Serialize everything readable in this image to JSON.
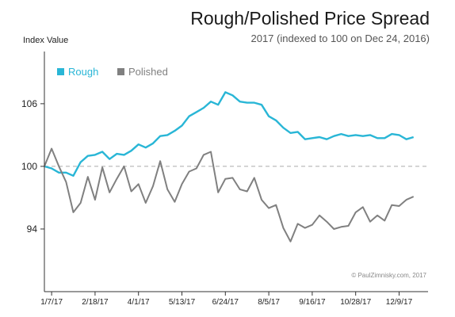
{
  "chart_data": {
    "type": "line",
    "title": "Rough/Polished Price Spread",
    "subtitle": "2017 (indexed to 100 on Dec 24, 2016)",
    "ylabel": "Index Value",
    "xlabel": "",
    "ylim": [
      88,
      111
    ],
    "y_ticks": [
      94,
      100,
      106
    ],
    "reference_line": 100,
    "x_tick_labels": [
      "1/7/17",
      "2/18/17",
      "4/1/17",
      "5/13/17",
      "6/24/17",
      "8/5/17",
      "9/16/17",
      "10/28/17",
      "12/9/17"
    ],
    "x_range": [
      0,
      53
    ],
    "x_tick_positions": [
      1,
      7,
      13,
      19,
      25,
      31,
      37,
      43,
      49
    ],
    "legend_position": "top-left",
    "credit": "© PaulZimnisky.com, 2017",
    "colors": {
      "rough": "#29b6d6",
      "polished": "#808080",
      "axis": "#333333",
      "reference": "#aaaaaa"
    },
    "series": [
      {
        "name": "Rough",
        "x": [
          0,
          1,
          2,
          3,
          4,
          5,
          6,
          7,
          8,
          9,
          10,
          11,
          12,
          13,
          14,
          15,
          16,
          17,
          18,
          19,
          20,
          21,
          22,
          23,
          24,
          25,
          26,
          27,
          28,
          29,
          30,
          31,
          32,
          33,
          34,
          35,
          36,
          37,
          38,
          39,
          40,
          41,
          42,
          43,
          44,
          45,
          46,
          47,
          48,
          49,
          50,
          51,
          52
        ],
        "values": [
          100.0,
          99.8,
          99.4,
          99.4,
          99.1,
          100.4,
          101.0,
          101.1,
          101.4,
          100.7,
          101.2,
          101.1,
          101.5,
          102.1,
          101.8,
          102.2,
          102.9,
          103.0,
          103.4,
          103.9,
          104.8,
          105.2,
          105.6,
          106.2,
          105.9,
          107.1,
          106.8,
          106.2,
          106.1,
          106.1,
          105.9,
          104.8,
          104.4,
          103.7,
          103.2,
          103.3,
          102.6,
          102.7,
          102.8,
          102.6,
          102.9,
          103.1,
          102.9,
          103.0,
          102.9,
          103.0,
          102.7,
          102.7,
          103.1,
          103.0,
          102.6,
          102.8,
          null
        ]
      },
      {
        "name": "Polished",
        "x": [
          0,
          1,
          2,
          3,
          4,
          5,
          6,
          7,
          8,
          9,
          10,
          11,
          12,
          13,
          14,
          15,
          16,
          17,
          18,
          19,
          20,
          21,
          22,
          23,
          24,
          25,
          26,
          27,
          28,
          29,
          30,
          31,
          32,
          33,
          34,
          35,
          36,
          37,
          38,
          39,
          40,
          41,
          42,
          43,
          44,
          45,
          46,
          47,
          48,
          49,
          50,
          51,
          52
        ],
        "values": [
          100.0,
          101.7,
          100.0,
          98.5,
          95.6,
          96.5,
          99.0,
          96.8,
          99.9,
          97.5,
          98.8,
          100.0,
          97.6,
          98.3,
          96.5,
          98.1,
          100.5,
          97.8,
          96.6,
          98.3,
          99.5,
          99.8,
          101.1,
          101.4,
          97.5,
          98.8,
          98.9,
          97.8,
          97.6,
          98.9,
          96.8,
          96.0,
          96.3,
          94.1,
          92.8,
          94.5,
          94.1,
          94.4,
          95.3,
          94.7,
          94.0,
          94.2,
          94.3,
          95.6,
          96.1,
          94.7,
          95.3,
          94.8,
          96.3,
          96.2,
          96.8,
          97.1,
          null
        ]
      }
    ]
  }
}
